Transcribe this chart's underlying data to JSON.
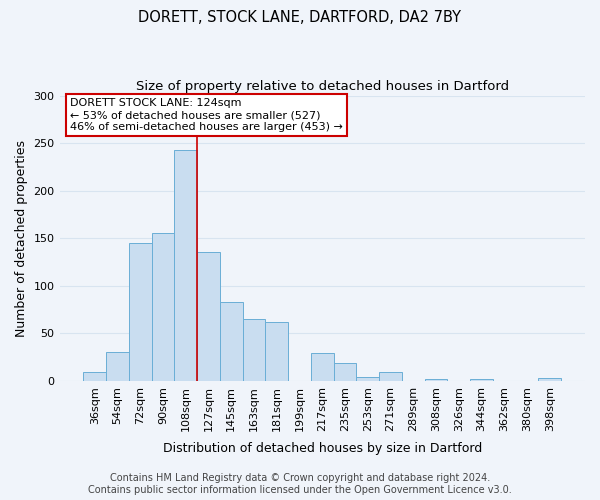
{
  "title": "DORETT, STOCK LANE, DARTFORD, DA2 7BY",
  "subtitle": "Size of property relative to detached houses in Dartford",
  "xlabel": "Distribution of detached houses by size in Dartford",
  "ylabel": "Number of detached properties",
  "bar_labels": [
    "36sqm",
    "54sqm",
    "72sqm",
    "90sqm",
    "108sqm",
    "127sqm",
    "145sqm",
    "163sqm",
    "181sqm",
    "199sqm",
    "217sqm",
    "235sqm",
    "253sqm",
    "271sqm",
    "289sqm",
    "308sqm",
    "326sqm",
    "344sqm",
    "362sqm",
    "380sqm",
    "398sqm"
  ],
  "bar_values": [
    9,
    30,
    145,
    156,
    243,
    135,
    83,
    65,
    62,
    0,
    29,
    19,
    4,
    9,
    0,
    2,
    0,
    2,
    0,
    0,
    3
  ],
  "bar_color": "#c9ddf0",
  "bar_edge_color": "#6aaed6",
  "vline_color": "#cc0000",
  "vline_x_index": 4.5,
  "annotation_title": "DORETT STOCK LANE: 124sqm",
  "annotation_line1": "← 53% of detached houses are smaller (527)",
  "annotation_line2": "46% of semi-detached houses are larger (453) →",
  "annotation_box_color": "#ffffff",
  "annotation_box_edge": "#cc0000",
  "ylim": [
    0,
    300
  ],
  "yticks": [
    0,
    50,
    100,
    150,
    200,
    250,
    300
  ],
  "footer1": "Contains HM Land Registry data © Crown copyright and database right 2024.",
  "footer2": "Contains public sector information licensed under the Open Government Licence v3.0.",
  "background_color": "#f0f4fa",
  "grid_color": "#d8e4f0",
  "title_fontsize": 10.5,
  "subtitle_fontsize": 9.5,
  "axis_label_fontsize": 9,
  "tick_fontsize": 8,
  "footer_fontsize": 7,
  "annotation_fontsize": 8
}
